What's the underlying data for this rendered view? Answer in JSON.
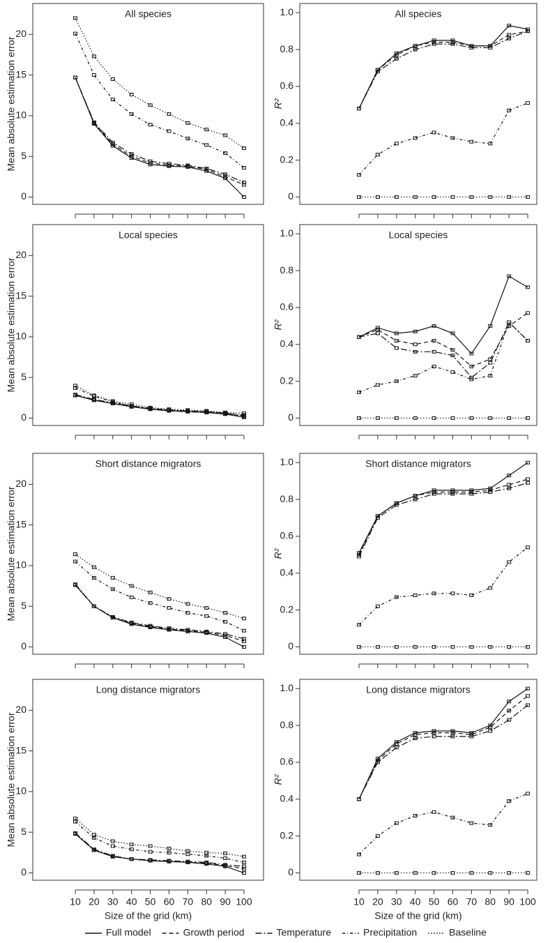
{
  "chart_data": [
    {
      "type": "line",
      "title": "All species",
      "ylabel": "Mean absolute estimation error",
      "x": [
        10,
        20,
        30,
        40,
        50,
        60,
        70,
        80,
        90,
        100
      ],
      "xlim": [
        -12.7,
        110.4
      ],
      "xticks": [
        10,
        20,
        30,
        40,
        50,
        60,
        70,
        80,
        90,
        100
      ],
      "ylim": [
        -0.9,
        23.8
      ],
      "yticks": [
        0,
        5,
        10,
        15,
        20
      ],
      "series": [
        {
          "name": "Full model",
          "color": "#111",
          "dash": "solid",
          "values": [
            14.7,
            9.0,
            6.3,
            4.8,
            4.0,
            3.8,
            3.7,
            3.2,
            2.3,
            0
          ]
        },
        {
          "name": "Growth period",
          "color": "#111",
          "dash": "dashed",
          "values": [
            14.7,
            9.1,
            6.5,
            5.0,
            4.2,
            3.9,
            3.8,
            3.4,
            2.5,
            1.5
          ]
        },
        {
          "name": "Temperature",
          "color": "#111",
          "dash": "longdashdot",
          "values": [
            14.7,
            9.2,
            6.7,
            5.3,
            4.4,
            4.1,
            3.9,
            3.5,
            2.8,
            1.8
          ]
        },
        {
          "name": "Precipitation",
          "color": "#111",
          "dash": "dashdot",
          "values": [
            20.1,
            15.0,
            12.0,
            10.2,
            8.9,
            8.1,
            7.2,
            6.4,
            5.4,
            3.6
          ]
        },
        {
          "name": "Baseline",
          "color": "#111",
          "dash": "dotted",
          "values": [
            22.0,
            17.3,
            14.5,
            12.6,
            11.3,
            10.2,
            9.1,
            8.3,
            7.6,
            6.0
          ]
        }
      ]
    },
    {
      "type": "line",
      "title": "All species",
      "ylabel": "R²",
      "x": [
        10,
        20,
        30,
        40,
        50,
        60,
        70,
        80,
        90,
        100
      ],
      "xlim": [
        -21.6,
        104.8
      ],
      "xticks": [
        10,
        20,
        30,
        40,
        50,
        60,
        70,
        80,
        90,
        100
      ],
      "ylim": [
        -0.04,
        1.05
      ],
      "yticks": [
        0,
        0.2,
        0.4,
        0.6,
        0.8,
        {
          "value": 1,
          "label": "1.0"
        }
      ],
      "series": [
        {
          "name": "Full model",
          "color": "#111",
          "dash": "solid",
          "values": [
            0.48,
            0.69,
            0.78,
            0.82,
            0.85,
            0.85,
            0.82,
            0.82,
            0.93,
            0.91
          ]
        },
        {
          "name": "Growth period",
          "color": "#111",
          "dash": "dashed",
          "values": [
            0.48,
            0.69,
            0.77,
            0.82,
            0.84,
            0.84,
            0.82,
            0.82,
            0.88,
            0.9
          ]
        },
        {
          "name": "Temperature",
          "color": "#111",
          "dash": "longdashdot",
          "values": [
            0.48,
            0.68,
            0.75,
            0.8,
            0.83,
            0.83,
            0.81,
            0.81,
            0.86,
            0.9
          ]
        },
        {
          "name": "Precipitation",
          "color": "#111",
          "dash": "dashdot",
          "values": [
            0.12,
            0.23,
            0.29,
            0.32,
            0.35,
            0.32,
            0.3,
            0.29,
            0.47,
            0.51
          ]
        },
        {
          "name": "Baseline",
          "color": "#111",
          "dash": "dotted",
          "values": [
            0,
            0,
            0,
            0,
            0,
            0,
            0,
            0,
            0,
            0
          ]
        }
      ]
    },
    {
      "type": "line",
      "title": "Local species",
      "ylabel": "Mean absolute estimation error",
      "x": [
        10,
        20,
        30,
        40,
        50,
        60,
        70,
        80,
        90,
        100
      ],
      "xlim": [
        -12.7,
        110.4
      ],
      "xticks": [
        10,
        20,
        30,
        40,
        50,
        60,
        70,
        80,
        90,
        100
      ],
      "ylim": [
        -0.9,
        23.8
      ],
      "yticks": [
        0,
        5,
        10,
        15,
        20
      ],
      "series": [
        {
          "name": "Full model",
          "color": "#111",
          "dash": "solid",
          "values": [
            2.8,
            2.2,
            1.8,
            1.4,
            1.1,
            0.9,
            0.8,
            0.7,
            0.5,
            0.1
          ]
        },
        {
          "name": "Growth period",
          "color": "#111",
          "dash": "dashed",
          "values": [
            2.8,
            2.2,
            1.8,
            1.4,
            1.1,
            0.9,
            0.8,
            0.7,
            0.5,
            0.2
          ]
        },
        {
          "name": "Temperature",
          "color": "#111",
          "dash": "longdashdot",
          "values": [
            2.9,
            2.3,
            1.9,
            1.5,
            1.2,
            1.0,
            0.9,
            0.8,
            0.6,
            0.3
          ]
        },
        {
          "name": "Precipitation",
          "color": "#111",
          "dash": "dashdot",
          "values": [
            3.7,
            2.7,
            2.0,
            1.5,
            1.2,
            1.0,
            0.9,
            0.8,
            0.6,
            0.4
          ]
        },
        {
          "name": "Baseline",
          "color": "#111",
          "dash": "dotted",
          "values": [
            4.0,
            2.8,
            2.1,
            1.7,
            1.3,
            1.1,
            1.0,
            0.9,
            0.7,
            0.6
          ]
        }
      ]
    },
    {
      "type": "line",
      "title": "Local species",
      "ylabel": "R²",
      "x": [
        10,
        20,
        30,
        40,
        50,
        60,
        70,
        80,
        90,
        100
      ],
      "xlim": [
        -21.6,
        104.8
      ],
      "xticks": [
        10,
        20,
        30,
        40,
        50,
        60,
        70,
        80,
        90,
        100
      ],
      "ylim": [
        -0.04,
        1.05
      ],
      "yticks": [
        0,
        0.2,
        0.4,
        0.6,
        0.8,
        {
          "value": 1,
          "label": "1.0"
        }
      ],
      "series": [
        {
          "name": "Full model",
          "color": "#111",
          "dash": "solid",
          "values": [
            0.44,
            0.49,
            0.46,
            0.47,
            0.5,
            0.46,
            0.35,
            0.5,
            0.77,
            0.71
          ]
        },
        {
          "name": "Growth period",
          "color": "#111",
          "dash": "dashed",
          "values": [
            0.44,
            0.48,
            0.42,
            0.4,
            0.42,
            0.37,
            0.28,
            0.32,
            0.5,
            0.57
          ]
        },
        {
          "name": "Temperature",
          "color": "#111",
          "dash": "longdashdot",
          "values": [
            0.44,
            0.46,
            0.38,
            0.36,
            0.36,
            0.34,
            0.22,
            0.3,
            0.52,
            0.42
          ]
        },
        {
          "name": "Precipitation",
          "color": "#111",
          "dash": "dashdot",
          "values": [
            0.14,
            0.18,
            0.2,
            0.23,
            0.28,
            0.25,
            0.21,
            0.23,
            0.52,
            0.42
          ]
        },
        {
          "name": "Baseline",
          "color": "#111",
          "dash": "dotted",
          "values": [
            0,
            0,
            0,
            0,
            0,
            0,
            0,
            0,
            0,
            0
          ]
        }
      ]
    },
    {
      "type": "line",
      "title": "Short distance migrators",
      "ylabel": "Mean absolute estimation error",
      "x": [
        10,
        20,
        30,
        40,
        50,
        60,
        70,
        80,
        90,
        100
      ],
      "xlim": [
        -12.7,
        110.4
      ],
      "xticks": [
        10,
        20,
        30,
        40,
        50,
        60,
        70,
        80,
        90,
        100
      ],
      "ylim": [
        -0.9,
        23.8
      ],
      "yticks": [
        0,
        5,
        10,
        15,
        20
      ],
      "series": [
        {
          "name": "Full model",
          "color": "#111",
          "dash": "solid",
          "values": [
            7.6,
            5.0,
            3.6,
            2.8,
            2.4,
            2.1,
            1.9,
            1.7,
            1.2,
            0
          ]
        },
        {
          "name": "Growth period",
          "color": "#111",
          "dash": "dashed",
          "values": [
            7.6,
            5.0,
            3.6,
            2.9,
            2.5,
            2.2,
            2.0,
            1.8,
            1.4,
            0.7
          ]
        },
        {
          "name": "Temperature",
          "color": "#111",
          "dash": "longdashdot",
          "values": [
            7.7,
            5.0,
            3.7,
            3.0,
            2.6,
            2.3,
            2.1,
            1.9,
            1.6,
            1.0
          ]
        },
        {
          "name": "Precipitation",
          "color": "#111",
          "dash": "dashdot",
          "values": [
            10.5,
            8.5,
            7.1,
            6.1,
            5.4,
            4.8,
            4.2,
            3.8,
            3.1,
            2.0
          ]
        },
        {
          "name": "Baseline",
          "color": "#111",
          "dash": "dotted",
          "values": [
            11.4,
            9.8,
            8.5,
            7.5,
            6.7,
            5.9,
            5.3,
            4.8,
            4.2,
            3.5
          ]
        }
      ]
    },
    {
      "type": "line",
      "title": "Short distance migrators",
      "ylabel": "R²",
      "x": [
        10,
        20,
        30,
        40,
        50,
        60,
        70,
        80,
        90,
        100
      ],
      "xlim": [
        -21.6,
        104.8
      ],
      "xticks": [
        10,
        20,
        30,
        40,
        50,
        60,
        70,
        80,
        90,
        100
      ],
      "ylim": [
        -0.04,
        1.05
      ],
      "yticks": [
        0,
        0.2,
        0.4,
        0.6,
        0.8,
        {
          "value": 1,
          "label": "1.0"
        }
      ],
      "series": [
        {
          "name": "Full model",
          "color": "#111",
          "dash": "solid",
          "values": [
            0.51,
            0.71,
            0.78,
            0.82,
            0.85,
            0.85,
            0.85,
            0.86,
            0.93,
            1.0
          ]
        },
        {
          "name": "Growth period",
          "color": "#111",
          "dash": "dashed",
          "values": [
            0.5,
            0.71,
            0.78,
            0.82,
            0.84,
            0.84,
            0.84,
            0.85,
            0.88,
            0.91
          ]
        },
        {
          "name": "Temperature",
          "color": "#111",
          "dash": "longdashdot",
          "values": [
            0.49,
            0.7,
            0.77,
            0.8,
            0.83,
            0.83,
            0.83,
            0.84,
            0.86,
            0.89
          ]
        },
        {
          "name": "Precipitation",
          "color": "#111",
          "dash": "dashdot",
          "values": [
            0.12,
            0.22,
            0.27,
            0.28,
            0.29,
            0.29,
            0.28,
            0.32,
            0.46,
            0.54
          ]
        },
        {
          "name": "Baseline",
          "color": "#111",
          "dash": "dotted",
          "values": [
            0,
            0,
            0,
            0,
            0,
            0,
            0,
            0,
            0,
            0
          ]
        }
      ]
    },
    {
      "type": "line",
      "title": "Long distance migrators",
      "ylabel": "Mean absolute estimation error",
      "xlabel": "Size of the grid (km)",
      "x": [
        10,
        20,
        30,
        40,
        50,
        60,
        70,
        80,
        90,
        100
      ],
      "xlim": [
        -12.7,
        110.4
      ],
      "xticks": [
        10,
        20,
        30,
        40,
        50,
        60,
        70,
        80,
        90,
        100
      ],
      "ylim": [
        -0.9,
        23.8
      ],
      "yticks": [
        0,
        5,
        10,
        15,
        20
      ],
      "series": [
        {
          "name": "Full model",
          "color": "#111",
          "dash": "solid",
          "values": [
            4.8,
            2.8,
            2.0,
            1.7,
            1.5,
            1.4,
            1.3,
            1.1,
            0.8,
            0
          ]
        },
        {
          "name": "Growth period",
          "color": "#111",
          "dash": "dashed",
          "values": [
            4.8,
            2.8,
            2.0,
            1.7,
            1.5,
            1.4,
            1.3,
            1.2,
            0.9,
            0.5
          ]
        },
        {
          "name": "Temperature",
          "color": "#111",
          "dash": "longdashdot",
          "values": [
            4.9,
            2.9,
            2.1,
            1.7,
            1.6,
            1.5,
            1.4,
            1.3,
            1.0,
            0.8
          ]
        },
        {
          "name": "Precipitation",
          "color": "#111",
          "dash": "dashdot",
          "values": [
            6.3,
            4.3,
            3.3,
            2.9,
            2.6,
            2.5,
            2.3,
            2.1,
            1.8,
            1.3
          ]
        },
        {
          "name": "Baseline",
          "color": "#111",
          "dash": "dotted",
          "values": [
            6.7,
            4.7,
            3.9,
            3.5,
            3.3,
            3.0,
            2.7,
            2.5,
            2.4,
            2.0
          ]
        }
      ]
    },
    {
      "type": "line",
      "title": "Long distance migrators",
      "ylabel": "R²",
      "xlabel": "Size of the grid (km)",
      "x": [
        10,
        20,
        30,
        40,
        50,
        60,
        70,
        80,
        90,
        100
      ],
      "xlim": [
        -21.6,
        104.8
      ],
      "xticks": [
        10,
        20,
        30,
        40,
        50,
        60,
        70,
        80,
        90,
        100
      ],
      "ylim": [
        -0.04,
        1.05
      ],
      "yticks": [
        0,
        0.2,
        0.4,
        0.6,
        0.8,
        {
          "value": 1,
          "label": "1.0"
        }
      ],
      "series": [
        {
          "name": "Full model",
          "color": "#111",
          "dash": "solid",
          "values": [
            0.4,
            0.62,
            0.71,
            0.76,
            0.77,
            0.77,
            0.76,
            0.8,
            0.93,
            1.0
          ]
        },
        {
          "name": "Growth period",
          "color": "#111",
          "dash": "dashed",
          "values": [
            0.4,
            0.61,
            0.7,
            0.75,
            0.76,
            0.76,
            0.75,
            0.79,
            0.88,
            0.96
          ]
        },
        {
          "name": "Temperature",
          "color": "#111",
          "dash": "longdashdot",
          "values": [
            0.4,
            0.6,
            0.68,
            0.73,
            0.74,
            0.74,
            0.74,
            0.77,
            0.83,
            0.91
          ]
        },
        {
          "name": "Precipitation",
          "color": "#111",
          "dash": "dashdot",
          "values": [
            0.1,
            0.2,
            0.27,
            0.31,
            0.33,
            0.3,
            0.27,
            0.26,
            0.39,
            0.43
          ]
        },
        {
          "name": "Baseline",
          "color": "#111",
          "dash": "dotted",
          "values": [
            0,
            0,
            0,
            0,
            0,
            0,
            0,
            0,
            0,
            0
          ]
        }
      ]
    }
  ]
}
